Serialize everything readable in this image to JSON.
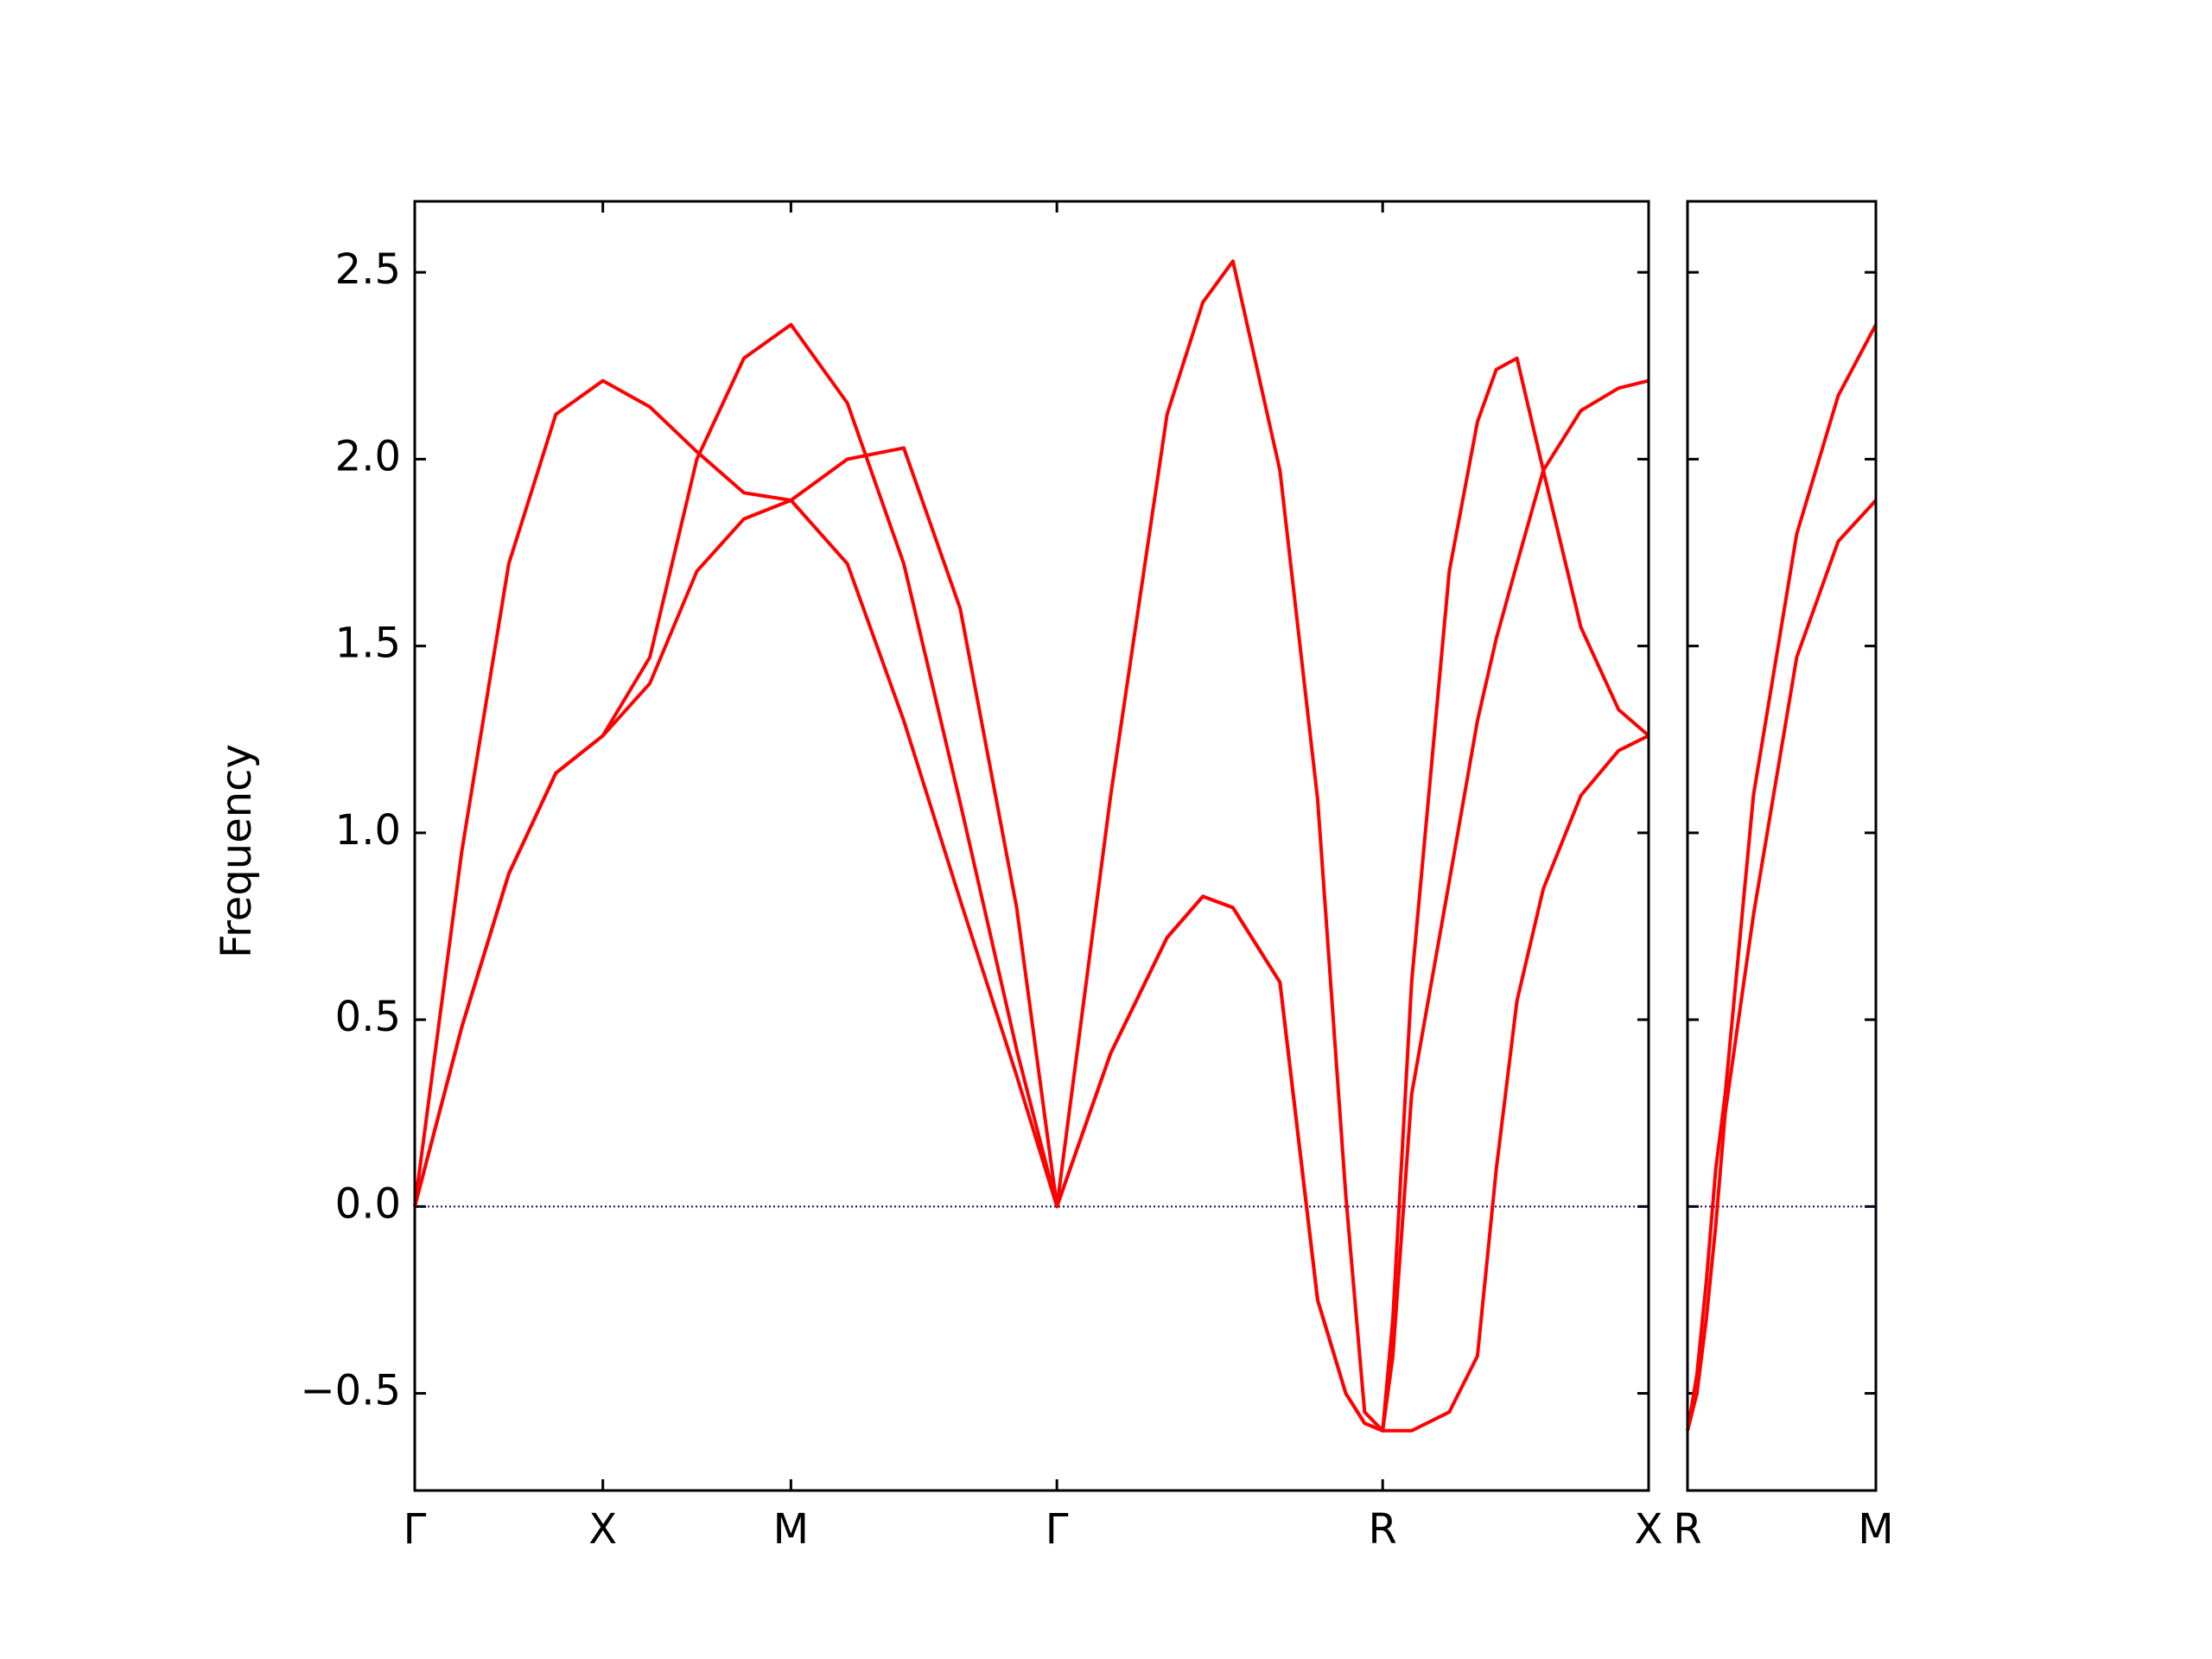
{
  "chart_data": [
    {
      "type": "line",
      "ylabel": "Frequency",
      "x": [
        0,
        0.25,
        0.5,
        0.75,
        1,
        1.25,
        1.5,
        1.75,
        2,
        2.3,
        2.6,
        2.9,
        3.2,
        3.414,
        3.7,
        4.0,
        4.19,
        4.35,
        4.6,
        4.8,
        4.95,
        5.05,
        5.146,
        5.2,
        5.3,
        5.5,
        5.65,
        5.75,
        5.86,
        6.0,
        6.2,
        6.4,
        6.56
      ],
      "series": [
        {
          "color": "#ff0000",
          "values": [
            0,
            0.95,
            1.72,
            2.12,
            2.21,
            2.14,
            2.02,
            1.91,
            1.89,
            2.0,
            2.03,
            1.6,
            0.8,
            0,
            1.1,
            2.12,
            2.42,
            2.53,
            1.97,
            1.09,
            0.03,
            -0.55,
            -0.6,
            -0.3,
            0.6,
            1.7,
            2.1,
            2.24,
            2.27,
            1.97,
            1.55,
            1.33,
            1.26
          ]
        },
        {
          "color": "#ff0000",
          "values": [
            0,
            0.48,
            0.89,
            1.16,
            1.26,
            1.47,
            2.0,
            2.27,
            2.36,
            2.15,
            1.72,
            1.08,
            0.42,
            0,
            0.41,
            0.72,
            0.83,
            0.8,
            0.6,
            -0.25,
            -0.5,
            -0.58,
            -0.6,
            -0.4,
            0.3,
            0.87,
            1.3,
            1.52,
            1.72,
            1.97,
            2.13,
            2.19,
            2.21
          ]
        },
        {
          "color": "#ff0000",
          "values": [
            0,
            0.48,
            0.89,
            1.16,
            1.26,
            1.4,
            1.7,
            1.84,
            1.89,
            1.72,
            1.3,
            0.82,
            0.35,
            0,
            0.41,
            0.72,
            0.83,
            0.8,
            0.6,
            -0.25,
            -0.5,
            -0.58,
            -0.6,
            -0.6,
            -0.6,
            -0.55,
            -0.4,
            0.1,
            0.55,
            0.85,
            1.1,
            1.22,
            1.26
          ]
        }
      ],
      "xlim": [
        0,
        6.56
      ],
      "xticks": [
        {
          "value": 0,
          "label": "Γ"
        },
        {
          "value": 1,
          "label": "X"
        },
        {
          "value": 2,
          "label": "M"
        },
        {
          "value": 3.414,
          "label": "Γ"
        },
        {
          "value": 5.146,
          "label": "R"
        },
        {
          "value": 6.56,
          "label": "X"
        }
      ],
      "ylim": [
        -0.76,
        2.69
      ],
      "yticks": [
        {
          "value": -0.5,
          "label": "−0.5"
        },
        {
          "value": 0,
          "label": "0.0"
        },
        0.5,
        {
          "value": 1,
          "label": "1.0"
        },
        1.5,
        {
          "value": 2,
          "label": "2.0"
        },
        2.5
      ],
      "hline": 0,
      "hline_color": "#00008b"
    },
    {
      "type": "line",
      "x": [
        0,
        0.05,
        0.1,
        0.15,
        0.2,
        0.35,
        0.58,
        0.8,
        1
      ],
      "series": [
        {
          "color": "#ff0000",
          "values": [
            -0.6,
            -0.45,
            -0.2,
            0.1,
            0.3,
            1.1,
            1.8,
            2.17,
            2.36
          ]
        },
        {
          "color": "#ff0000",
          "values": [
            -0.6,
            -0.5,
            -0.3,
            -0.05,
            0.25,
            0.78,
            1.47,
            1.78,
            1.89
          ]
        }
      ],
      "xlim": [
        0,
        1
      ],
      "xticks": [
        {
          "value": 0,
          "label": "R"
        },
        {
          "value": 1,
          "label": "M"
        }
      ],
      "ylim": [
        -0.76,
        2.69
      ],
      "hline": 0,
      "hline_color": "#00008b"
    }
  ]
}
